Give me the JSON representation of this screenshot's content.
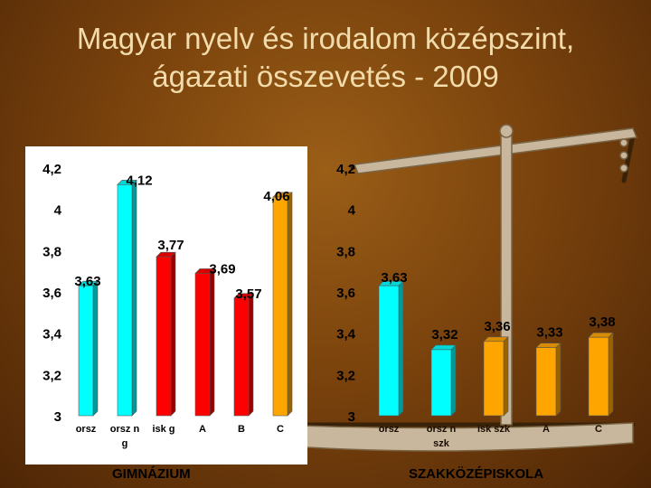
{
  "title_lines": [
    "Magyar nyelv és irodalom középszint,",
    "ágazati összevetés - 2009"
  ],
  "chart_data": [
    {
      "type": "bar",
      "title": "",
      "caption": "GIMNÁZIUM",
      "categories": [
        "orsz",
        "orsz n g",
        "isk g",
        "A",
        "B",
        "C"
      ],
      "category_lines": [
        [
          "orsz"
        ],
        [
          "orsz n",
          "g"
        ],
        [
          "isk g"
        ],
        [
          "A"
        ],
        [
          "B"
        ],
        [
          "C"
        ]
      ],
      "values": [
        3.63,
        4.12,
        3.77,
        3.69,
        3.57,
        4.06
      ],
      "value_labels": [
        "3,63",
        "4,12",
        "3,77",
        "3,69",
        "3,57",
        "4,06"
      ],
      "colors": [
        "#00ffff",
        "#00ffff",
        "#ff0000",
        "#ff0000",
        "#ff0000",
        "#ffa500"
      ],
      "ylim": [
        3,
        4.2
      ],
      "yticks": [
        3,
        3.2,
        3.4,
        3.6,
        3.8,
        4,
        4.2
      ],
      "ytick_labels": [
        "3",
        "3,2",
        "3,4",
        "3,6",
        "3,8",
        "4",
        "4,2"
      ],
      "xlabel": "",
      "ylabel": "",
      "grid": false,
      "legend": false
    },
    {
      "type": "bar",
      "title": "",
      "caption": "SZAKKÖZÉPISKOLA",
      "categories": [
        "orsz",
        "orsz n szk",
        "isk szk",
        "A",
        "C"
      ],
      "category_lines": [
        [
          "orsz"
        ],
        [
          "orsz n",
          "szk"
        ],
        [
          "isk szk"
        ],
        [
          "A"
        ],
        [
          "C"
        ]
      ],
      "values": [
        3.63,
        3.32,
        3.36,
        3.33,
        3.38
      ],
      "value_labels": [
        "3,63",
        "3,32",
        "3,36",
        "3,33",
        "3,38"
      ],
      "colors": [
        "#00ffff",
        "#00ffff",
        "#ffa500",
        "#ffa500",
        "#ffa500"
      ],
      "ylim": [
        3,
        4.2
      ],
      "yticks": [
        3,
        3.2,
        3.4,
        3.6,
        3.8,
        4,
        4.2
      ],
      "ytick_labels": [
        "3",
        "3,2",
        "3,4",
        "3,6",
        "3,8",
        "4",
        "4,2"
      ],
      "xlabel": "",
      "ylabel": "",
      "grid": false,
      "legend": false
    }
  ],
  "colors": {
    "background": "#7b430d",
    "title": "#f3dcab",
    "panel": "#ffffff"
  }
}
